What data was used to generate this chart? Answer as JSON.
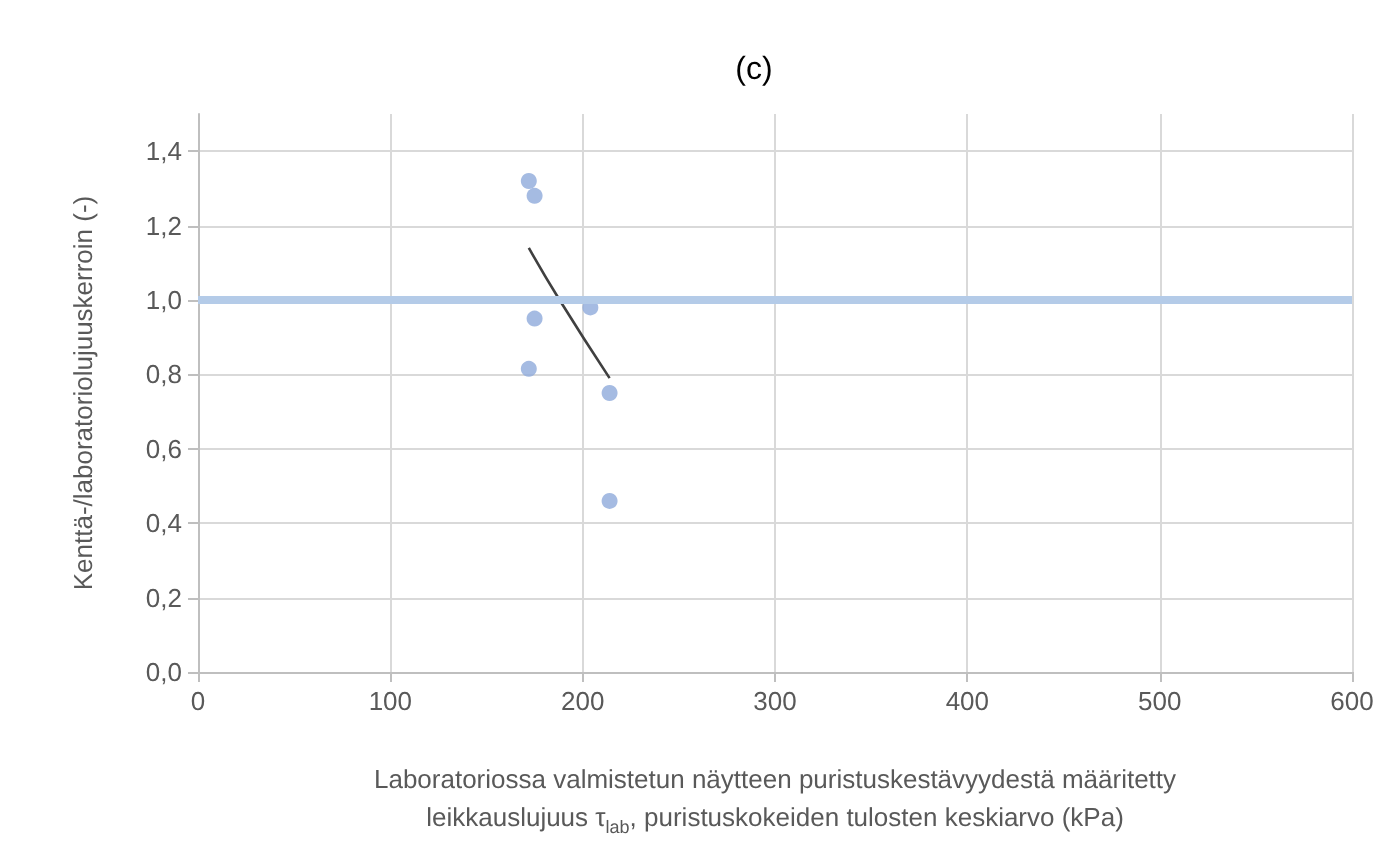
{
  "chart_data": {
    "type": "scatter",
    "title": "(c)",
    "xlabel": "Laboratoriossa valmistetun näytteen puristuskestävyydestä määritetty\nleikkauslujuus τ$_{lab}$, puristuskokeiden tulosten keskiarvo (kPa)",
    "ylabel": "Kenttä-/laboratoriolujuuskerroin (-)",
    "series": [
      {
        "color": "#8eaadb",
        "marker": "circle",
        "x": [
          172,
          175,
          204,
          175,
          172,
          214,
          214
        ],
        "values": [
          1.32,
          1.28,
          0.98,
          0.95,
          0.815,
          0.75,
          0.46
        ]
      },
      {
        "type": "line",
        "color": "#404040",
        "marker": "none",
        "x": [
          172,
          188,
          214
        ],
        "values": [
          1.14,
          1.0,
          0.79
        ]
      }
    ],
    "xlim": [
      0,
      600
    ],
    "xticks": [
      0,
      100,
      200,
      300,
      400,
      500,
      600
    ],
    "ylim": [
      0,
      1.5
    ],
    "yticks": [
      {
        "value": 0,
        "label": "0,0"
      },
      {
        "value": 0.2,
        "label": "0,2"
      },
      {
        "value": 0.4,
        "label": "0,4"
      },
      {
        "value": 0.6,
        "label": "0,6"
      },
      {
        "value": 0.8,
        "label": "0,8"
      },
      {
        "value": 1.0,
        "label": "1,0"
      },
      {
        "value": 1.2,
        "label": "1,2"
      },
      {
        "value": 1.4,
        "label": "1,4"
      }
    ],
    "ref_lines": [
      {
        "axis": "y",
        "value": 1.0,
        "color": "#b4cbe8"
      }
    ],
    "grid": true
  }
}
